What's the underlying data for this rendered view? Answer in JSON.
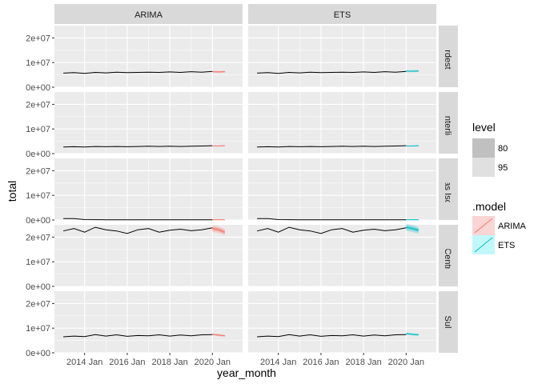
{
  "chart_data": {
    "type": "line",
    "xlabel": "year_month",
    "ylabel": "total",
    "x_ticks": [
      "2014 Jan",
      "2016 Jan",
      "2018 Jan",
      "2020 Jan"
    ],
    "y_ticks": [
      "0e+00",
      "1e+07",
      "2e+07"
    ],
    "ylim": [
      0,
      25000000
    ],
    "xlim": [
      "2012-08",
      "2021-06"
    ],
    "grid": true,
    "columns": [
      "ARIMA",
      "ETS"
    ],
    "rows": [
      "Nordeste",
      "orte Interligad",
      "stemas Isolad",
      "iste / Centro-C",
      "Sul"
    ],
    "historical_x_start": "2013-01",
    "historical_x_end": "2020-01",
    "forecast_x_start": "2020-01",
    "forecast_x_end": "2020-08",
    "historical_series": [
      {
        "region": "Nordeste",
        "values": [
          5700000.0,
          5900000.0,
          5600000.0,
          6000000.0,
          5800000.0,
          6100000.0,
          5900000.0,
          6000000.0,
          6100000.0,
          6000000.0,
          6200000.0,
          6000000.0,
          6300000.0,
          6100000.0,
          6400000.0
        ]
      },
      {
        "region": "orte Interligad",
        "values": [
          2700000.0,
          2800000.0,
          2700000.0,
          2900000.0,
          2800000.0,
          2900000.0,
          2800000.0,
          2900000.0,
          3000000.0,
          2900000.0,
          3000000.0,
          2900000.0,
          3000000.0,
          3100000.0,
          3200000.0
        ]
      },
      {
        "region": "stemas Isolad",
        "values": [
          600000.0,
          600000.0,
          150000.0,
          120000.0,
          110000.0,
          100000.0,
          100000.0,
          100000.0,
          100000.0,
          100000.0,
          100000.0,
          100000.0,
          100000.0,
          100000.0,
          100000.0
        ]
      },
      {
        "region": "iste / Centro-C",
        "values": [
          22500000.0,
          23500000.0,
          22000000.0,
          24000000.0,
          23000000.0,
          22500000.0,
          21500000.0,
          23000000.0,
          23500000.0,
          22000000.0,
          22800000.0,
          23200000.0,
          22600000.0,
          23000000.0,
          23800000.0
        ]
      },
      {
        "region": "Sul",
        "values": [
          6500000.0,
          6800000.0,
          6600000.0,
          7400000.0,
          6800000.0,
          7300000.0,
          6700000.0,
          7000000.0,
          6900000.0,
          7300000.0,
          6800000.0,
          7200000.0,
          6900000.0,
          7300000.0,
          7400000.0
        ]
      }
    ],
    "forecast_series": [
      {
        "model": "ARIMA",
        "values": [
          [
            6300000.0,
            6200000.0,
            6300000.0
          ],
          [
            3100000.0,
            3100000.0,
            3200000.0
          ],
          [
            100000.0,
            100000.0,
            100000.0
          ],
          [
            23500000.0,
            23000000.0,
            22000000.0
          ],
          [
            7500000.0,
            7200000.0,
            6900000.0
          ]
        ]
      },
      {
        "model": "ETS",
        "values": [
          [
            6500000.0,
            6500000.0,
            6600000.0
          ],
          [
            3100000.0,
            3100000.0,
            3200000.0
          ],
          [
            100000.0,
            100000.0,
            100000.0
          ],
          [
            24000000.0,
            23500000.0,
            22800000.0
          ],
          [
            7800000.0,
            7500000.0,
            7300000.0
          ]
        ]
      }
    ],
    "legend": {
      "level_title": "level",
      "levels": [
        "80",
        "95"
      ],
      "level_colors": [
        "#c0c0c0",
        "#e0e0e0"
      ],
      "model_title": ".model",
      "models": [
        "ARIMA",
        "ETS"
      ],
      "model_colors": [
        "#f8766d",
        "#00bfc4"
      ],
      "placement": "right"
    }
  }
}
